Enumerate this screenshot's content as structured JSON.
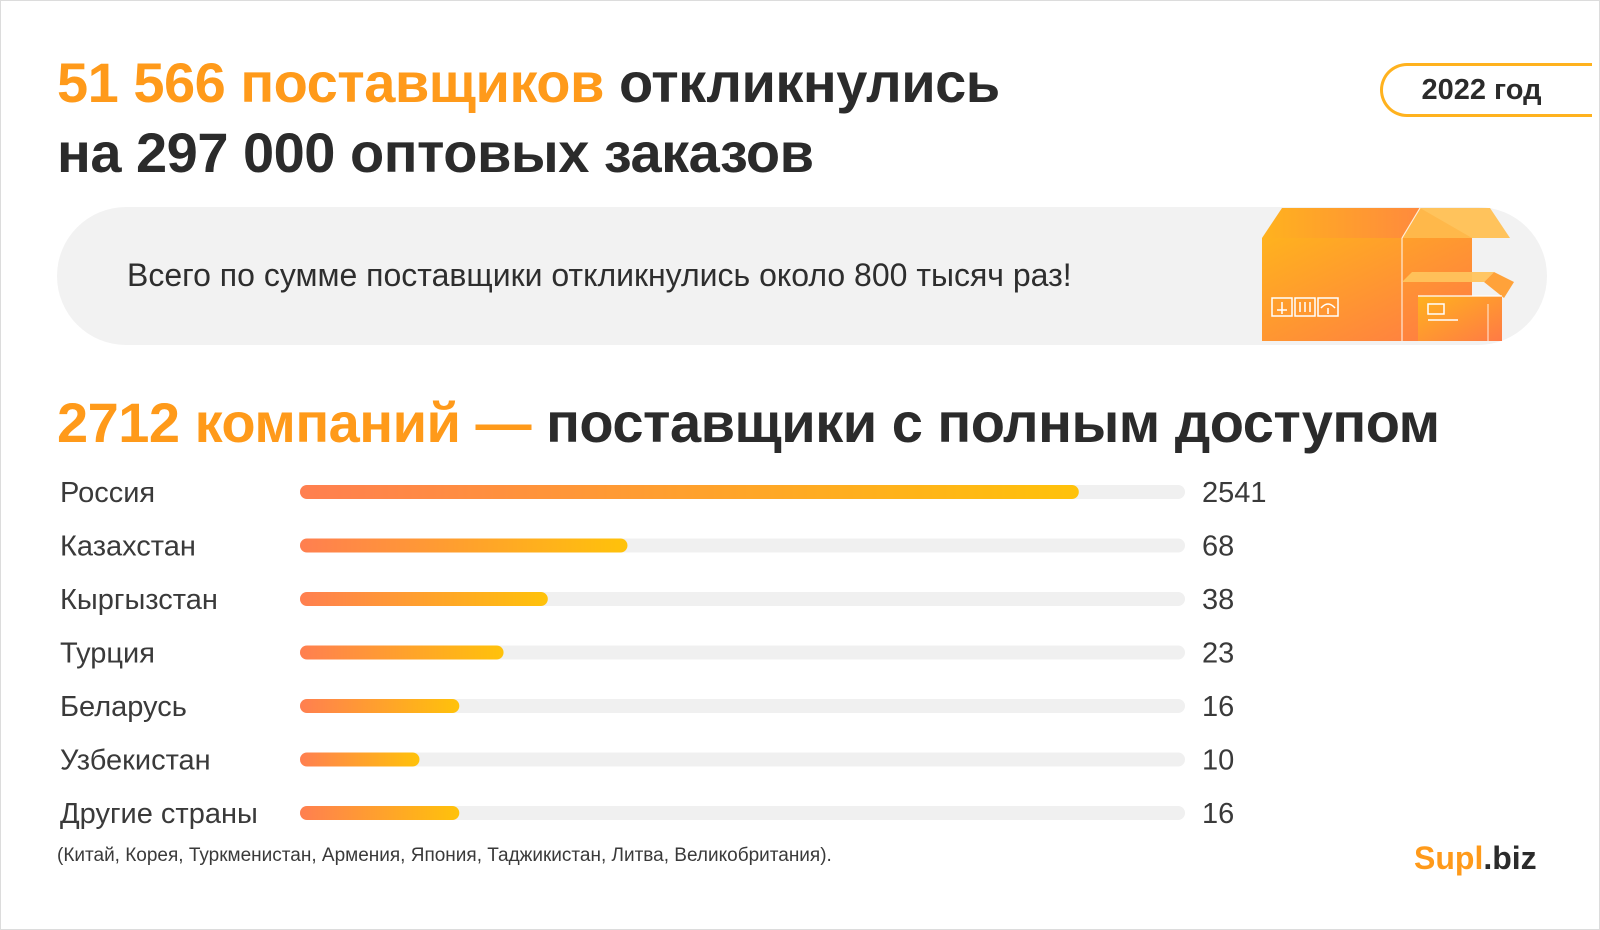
{
  "title": {
    "highlight": "51 566 поставщиков",
    "rest": "откликнулись",
    "line2": "на 297 000 оптовых заказов"
  },
  "year_badge": "2022 год",
  "banner": {
    "text": "Всего по сумме поставщики откликнулись около 800 тысяч раз!",
    "icon": "boxes-illustration"
  },
  "subtitle": {
    "highlight": "2712 компаний —",
    "rest": "поставщики с полным доступом"
  },
  "colors": {
    "accent": "#ff9a1a",
    "gradient_start": "#ff7f50",
    "gradient_end": "#ffc20a",
    "track": "#f0f0f0",
    "banner_bg": "#f2f2f2"
  },
  "chart_data": {
    "type": "bar",
    "orientation": "horizontal",
    "title": "2712 компаний — поставщики с полным доступом",
    "scale": "non-linear (bar lengths not proportional)",
    "categories": [
      "Россия",
      "Казахстан",
      "Кыргызстан",
      "Турция",
      "Беларусь",
      "Узбекистан",
      "Другие страны"
    ],
    "values": [
      2541,
      68,
      38,
      23,
      16,
      10,
      16
    ],
    "bar_fill_fraction": [
      0.88,
      0.37,
      0.28,
      0.23,
      0.18,
      0.135,
      0.18
    ],
    "xlabel": "",
    "ylabel": ""
  },
  "footnote": "(Китай, Корея, Туркменистан, Армения, Япония, Таджикистан, Литва, Великобритания).",
  "logo": {
    "main": "Supl",
    "tld": ".biz"
  }
}
